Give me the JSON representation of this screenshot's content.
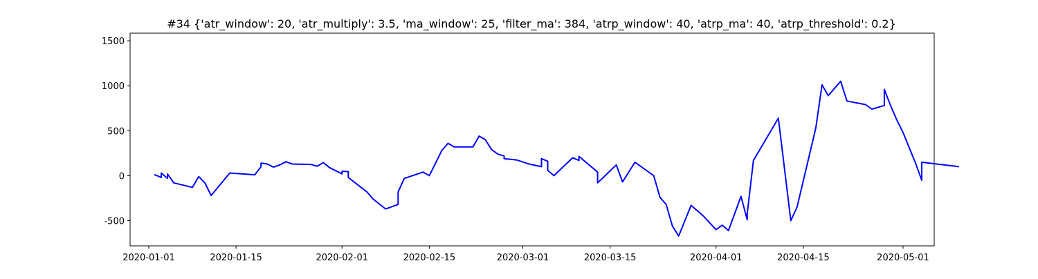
{
  "chart_data": {
    "type": "line",
    "title": "#34 {'atr_window': 20, 'atr_multiply': 3.5, 'ma_window': 25, 'filter_ma': 384, 'atrp_window': 40, 'atrp_ma': 40, 'atrp_threshold': 0.2}",
    "xlabel": "",
    "ylabel": "",
    "x_ticks": [
      "2020-01-01",
      "2020-01-15",
      "2020-02-01",
      "2020-02-15",
      "2020-03-01",
      "2020-03-15",
      "2020-04-01",
      "2020-04-15",
      "2020-05-01"
    ],
    "y_ticks": [
      -500,
      0,
      500,
      1000,
      1500
    ],
    "xlim": [
      "2019-12-29",
      "2020-05-06"
    ],
    "ylim": [
      -780,
      1585
    ],
    "grid": false,
    "legend": "none",
    "series": [
      {
        "color": "#0000ff",
        "points": [
          [
            "2020-01-02",
            0
          ],
          [
            "2020-01-02",
            10
          ],
          [
            "2020-01-03",
            -20
          ],
          [
            "2020-01-03",
            30
          ],
          [
            "2020-01-04",
            -30
          ],
          [
            "2020-01-04",
            20
          ],
          [
            "2020-01-05",
            -80
          ],
          [
            "2020-01-08",
            -130
          ],
          [
            "2020-01-09",
            -10
          ],
          [
            "2020-01-10",
            -80
          ],
          [
            "2020-01-11",
            -220
          ],
          [
            "2020-01-14",
            30
          ],
          [
            "2020-01-18",
            10
          ],
          [
            "2020-01-19",
            100
          ],
          [
            "2020-01-19",
            140
          ],
          [
            "2020-01-20",
            130
          ],
          [
            "2020-01-21",
            95
          ],
          [
            "2020-01-22",
            120
          ],
          [
            "2020-01-23",
            155
          ],
          [
            "2020-01-24",
            130
          ],
          [
            "2020-01-27",
            125
          ],
          [
            "2020-01-28",
            105
          ],
          [
            "2020-01-29",
            145
          ],
          [
            "2020-01-30",
            90
          ],
          [
            "2020-02-01",
            20
          ],
          [
            "2020-02-01",
            50
          ],
          [
            "2020-02-02",
            45
          ],
          [
            "2020-02-02",
            -20
          ],
          [
            "2020-02-05",
            -180
          ],
          [
            "2020-02-06",
            -260
          ],
          [
            "2020-02-08",
            -370
          ],
          [
            "2020-02-10",
            -320
          ],
          [
            "2020-02-10",
            -180
          ],
          [
            "2020-02-11",
            -30
          ],
          [
            "2020-02-14",
            40
          ],
          [
            "2020-02-15",
            0
          ],
          [
            "2020-02-17",
            280
          ],
          [
            "2020-02-18",
            360
          ],
          [
            "2020-02-19",
            320
          ],
          [
            "2020-02-22",
            320
          ],
          [
            "2020-02-23",
            440
          ],
          [
            "2020-02-24",
            400
          ],
          [
            "2020-02-25",
            290
          ],
          [
            "2020-02-26",
            240
          ],
          [
            "2020-02-27",
            220
          ],
          [
            "2020-02-27",
            190
          ],
          [
            "2020-02-29",
            175
          ],
          [
            "2020-03-02",
            130
          ],
          [
            "2020-03-04",
            100
          ],
          [
            "2020-03-04",
            190
          ],
          [
            "2020-03-05",
            160
          ],
          [
            "2020-03-05",
            60
          ],
          [
            "2020-03-06",
            0
          ],
          [
            "2020-03-09",
            200
          ],
          [
            "2020-03-10",
            170
          ],
          [
            "2020-03-10",
            215
          ],
          [
            "2020-03-13",
            40
          ],
          [
            "2020-03-13",
            -80
          ],
          [
            "2020-03-16",
            120
          ],
          [
            "2020-03-17",
            -70
          ],
          [
            "2020-03-19",
            150
          ],
          [
            "2020-03-22",
            0
          ],
          [
            "2020-03-23",
            -240
          ],
          [
            "2020-03-24",
            -320
          ],
          [
            "2020-03-25",
            -560
          ],
          [
            "2020-03-26",
            -670
          ],
          [
            "2020-03-28",
            -330
          ],
          [
            "2020-03-30",
            -450
          ],
          [
            "2020-04-01",
            -600
          ],
          [
            "2020-04-02",
            -550
          ],
          [
            "2020-04-03",
            -610
          ],
          [
            "2020-04-05",
            -230
          ],
          [
            "2020-04-06",
            -490
          ],
          [
            "2020-04-06",
            -420
          ],
          [
            "2020-04-07",
            170
          ],
          [
            "2020-04-11",
            640
          ],
          [
            "2020-04-13",
            -500
          ],
          [
            "2020-04-14",
            -350
          ],
          [
            "2020-04-17",
            530
          ],
          [
            "2020-04-18",
            1010
          ],
          [
            "2020-04-19",
            890
          ],
          [
            "2020-04-21",
            1050
          ],
          [
            "2020-04-22",
            830
          ],
          [
            "2020-04-25",
            790
          ],
          [
            "2020-04-26",
            740
          ],
          [
            "2020-04-28",
            780
          ],
          [
            "2020-04-28",
            960
          ],
          [
            "2020-04-29",
            780
          ],
          [
            "2020-04-30",
            620
          ],
          [
            "2020-05-01",
            480
          ],
          [
            "2020-05-03",
            140
          ],
          [
            "2020-05-04",
            -50
          ],
          [
            "2020-05-04",
            150
          ],
          [
            "2020-05-10",
            100
          ]
        ]
      }
    ]
  }
}
